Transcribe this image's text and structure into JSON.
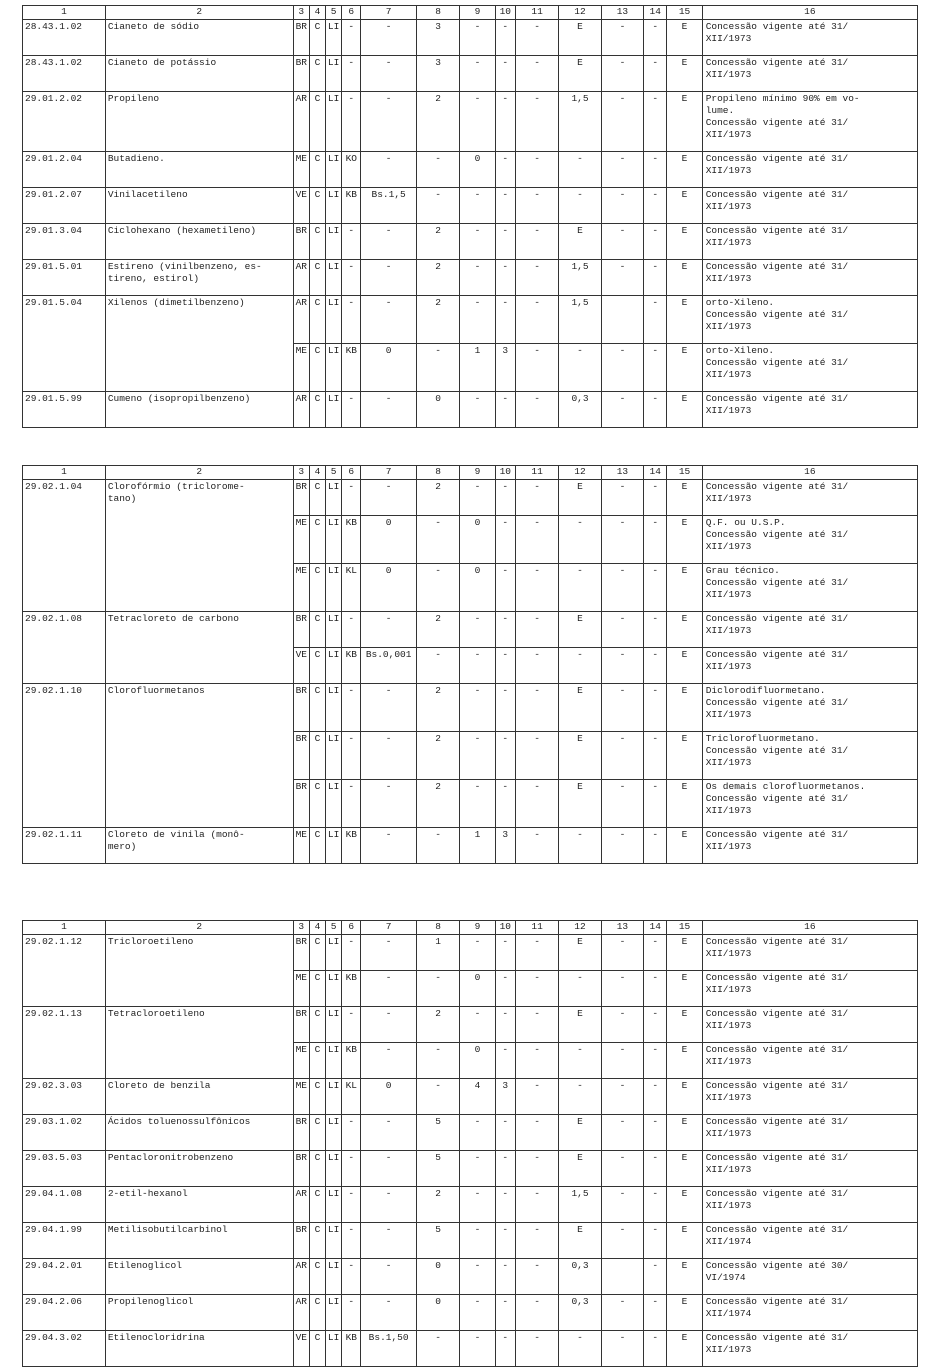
{
  "header": [
    "1",
    "2",
    "3",
    "4",
    "5",
    "6",
    "7",
    "8",
    "9",
    "10",
    "11",
    "12",
    "13",
    "14",
    "15",
    "16"
  ],
  "tables": [
    {
      "entries": [
        {
          "code": "28.43.1.02",
          "name": "Cianeto de sódio",
          "rows": [
            {
              "cells": [
                "BR",
                "C",
                "LI",
                "-",
                "-",
                "3",
                "-",
                "-",
                "-",
                "E",
                "-",
                "-",
                "E"
              ],
              "note": "Concessão vigente até 31/\nXII/1973"
            }
          ]
        },
        {
          "code": "28.43.1.02",
          "name": "Cianeto de potássio",
          "rows": [
            {
              "cells": [
                "BR",
                "C",
                "LI",
                "-",
                "-",
                "3",
                "-",
                "-",
                "-",
                "E",
                "-",
                "-",
                "E"
              ],
              "note": "Concessão vigente até 31/\nXII/1973"
            }
          ]
        },
        {
          "code": "29.01.2.02",
          "name": "Propileno",
          "rows": [
            {
              "cells": [
                "AR",
                "C",
                "LI",
                "-",
                "-",
                "2",
                "-",
                "-",
                "-",
                "1,5",
                "-",
                "-",
                "E"
              ],
              "note": "Propileno mínimo 90% em vo-\nlume.\nConcessão vigente até 31/\nXII/1973"
            }
          ]
        },
        {
          "code": "29.01.2.04",
          "name": "Butadieno.",
          "rows": [
            {
              "cells": [
                "ME",
                "C",
                "LI",
                "KO",
                "-",
                "-",
                "0",
                "-",
                "-",
                "-",
                "-",
                "-",
                "E"
              ],
              "note": "Concessão vigente até 31/\nXII/1973"
            }
          ]
        },
        {
          "code": "29.01.2.07",
          "name": "Vinilacetileno",
          "rows": [
            {
              "cells": [
                "VE",
                "C",
                "LI",
                "KB",
                "Bs.1,5",
                "-",
                "-",
                "-",
                "-",
                "-",
                "-",
                "-",
                "E"
              ],
              "note": "Concessão vigente até 31/\nXII/1973"
            }
          ]
        },
        {
          "code": "29.01.3.04",
          "name": "Ciclohexano (hexametileno)",
          "rows": [
            {
              "cells": [
                "BR",
                "C",
                "LI",
                "-",
                "-",
                "2",
                "-",
                "-",
                "-",
                "E",
                "-",
                "-",
                "E"
              ],
              "note": "Concessão vigente até 31/\nXII/1973"
            }
          ]
        },
        {
          "code": "29.01.5.01",
          "name": "Estireno (vinilbenzeno, es-\ntireno, estirol)",
          "rows": [
            {
              "cells": [
                "AR",
                "C",
                "LI",
                "-",
                "-",
                "2",
                "-",
                "-",
                "-",
                "1,5",
                "-",
                "-",
                "E"
              ],
              "note": "Concessão vigente até 31/\nXII/1973"
            }
          ]
        },
        {
          "code": "29.01.5.04",
          "name": "Xilenos (dimetilbenzeno)",
          "rows": [
            {
              "cells": [
                "AR",
                "C",
                "LI",
                "-",
                "-",
                "2",
                "-",
                "-",
                "-",
                "1,5",
                "",
                "-",
                "E"
              ],
              "note": "orto-Xileno.\nConcessão vigente até 31/\nXII/1973"
            },
            {
              "cells": [
                "ME",
                "C",
                "LI",
                "KB",
                "0",
                "-",
                "1",
                "3",
                "-",
                "-",
                "-",
                "-",
                "E"
              ],
              "note": "orto-Xileno.\nConcessão vigente até 31/\nXII/1973"
            }
          ]
        },
        {
          "code": "29.01.5.99",
          "name": "Cumeno (isopropilbenzeno)",
          "rows": [
            {
              "cells": [
                "AR",
                "C",
                "LI",
                "-",
                "-",
                "0",
                "-",
                "-",
                "-",
                "0,3",
                "-",
                "-",
                "E"
              ],
              "note": "Concessão vigente até 31/\nXII/1973"
            }
          ]
        }
      ]
    },
    {
      "entries": [
        {
          "code": "29.02.1.04",
          "name": "Clorofórmio (triclorome-\ntano)",
          "rows": [
            {
              "cells": [
                "BR",
                "C",
                "LI",
                "-",
                "-",
                "2",
                "-",
                "-",
                "-",
                "E",
                "-",
                "-",
                "E"
              ],
              "note": "Concessão vigente até 31/\nXII/1973"
            },
            {
              "cells": [
                "ME",
                "C",
                "LI",
                "KB",
                "0",
                "-",
                "0",
                "-",
                "-",
                "-",
                "-",
                "-",
                "E"
              ],
              "note": "Q.F. ou U.S.P.\nConcessão vigente até 31/\nXII/1973"
            },
            {
              "cells": [
                "ME",
                "C",
                "LI",
                "KL",
                "0",
                "-",
                "0",
                "-",
                "-",
                "-",
                "-",
                "-",
                "E"
              ],
              "note": "Grau técnico.\nConcessão vigente até 31/\nXII/1973"
            }
          ]
        },
        {
          "code": "29.02.1.08",
          "name": "Tetracloreto de carbono",
          "rows": [
            {
              "cells": [
                "BR",
                "C",
                "LI",
                "-",
                "-",
                "2",
                "-",
                "-",
                "-",
                "E",
                "-",
                "-",
                "E"
              ],
              "note": "Concessão vigente até 31/\nXII/1973"
            },
            {
              "cells": [
                "VE",
                "C",
                "LI",
                "KB",
                "Bs.0,001",
                "-",
                "-",
                "-",
                "-",
                "-",
                "-",
                "-",
                "E"
              ],
              "note": "Concessão vigente até 31/\nXII/1973"
            }
          ]
        },
        {
          "code": "29.02.1.10",
          "name": "Clorofluormetanos",
          "rows": [
            {
              "cells": [
                "BR",
                "C",
                "LI",
                "-",
                "-",
                "2",
                "-",
                "-",
                "-",
                "E",
                "-",
                "-",
                "E"
              ],
              "note": "Diclorodifluormetano.\nConcessão vigente até 31/\nXII/1973"
            },
            {
              "cells": [
                "BR",
                "C",
                "LI",
                "-",
                "-",
                "2",
                "-",
                "-",
                "-",
                "E",
                "-",
                "-",
                "E"
              ],
              "note": "Triclorofluormetano.\nConcessão vigente até 31/\nXII/1973"
            },
            {
              "cells": [
                "BR",
                "C",
                "LI",
                "-",
                "-",
                "2",
                "-",
                "-",
                "-",
                "E",
                "-",
                "-",
                "E"
              ],
              "note": "Os demais clorofluormetanos.\nConcessão vigente até 31/\nXII/1973"
            }
          ]
        },
        {
          "code": "29.02.1.11",
          "name": "Cloreto de vinila (monô-\nmero)",
          "rows": [
            {
              "cells": [
                "ME",
                "C",
                "LI",
                "KB",
                "-",
                "-",
                "1",
                "3",
                "-",
                "-",
                "-",
                "-",
                "E"
              ],
              "note": "Concessão vigente até 31/\nXII/1973"
            }
          ]
        }
      ]
    },
    {
      "entries": [
        {
          "code": "29.02.1.12",
          "name": "Tricloroetileno",
          "rows": [
            {
              "cells": [
                "BR",
                "C",
                "LI",
                "-",
                "-",
                "1",
                "-",
                "-",
                "-",
                "E",
                "-",
                "-",
                "E"
              ],
              "note": "Concessão vigente até 31/\nXII/1973"
            },
            {
              "cells": [
                "ME",
                "C",
                "LI",
                "KB",
                "-",
                "-",
                "0",
                "-",
                "-",
                "-",
                "-",
                "-",
                "E"
              ],
              "note": "Concessão vigente até 31/\nXII/1973"
            }
          ]
        },
        {
          "code": "29.02.1.13",
          "name": "Tetracloroetileno",
          "rows": [
            {
              "cells": [
                "BR",
                "C",
                "LI",
                "-",
                "-",
                "2",
                "-",
                "-",
                "-",
                "E",
                "-",
                "-",
                "E"
              ],
              "note": "Concessão vigente até 31/\nXII/1973"
            },
            {
              "cells": [
                "ME",
                "C",
                "LI",
                "KB",
                "-",
                "-",
                "0",
                "-",
                "-",
                "-",
                "-",
                "-",
                "E"
              ],
              "note": "Concessão vigente até 31/\nXII/1973"
            }
          ]
        },
        {
          "code": "29.02.3.03",
          "name": "Cloreto de benzila",
          "rows": [
            {
              "cells": [
                "ME",
                "C",
                "LI",
                "KL",
                "0",
                "-",
                "4",
                "3",
                "-",
                "-",
                "-",
                "-",
                "E"
              ],
              "note": "Concessão vigente até 31/\nXII/1973"
            }
          ]
        },
        {
          "code": "29.03.1.02",
          "name": "Ácidos toluenossulfônicos",
          "rows": [
            {
              "cells": [
                "BR",
                "C",
                "LI",
                "-",
                "-",
                "5",
                "-",
                "-",
                "-",
                "E",
                "-",
                "-",
                "E"
              ],
              "note": "Concessão vigente até 31/\nXII/1973"
            }
          ]
        },
        {
          "code": "29.03.5.03",
          "name": "Pentacloronitrobenzeno",
          "rows": [
            {
              "cells": [
                "BR",
                "C",
                "LI",
                "-",
                "-",
                "5",
                "-",
                "-",
                "-",
                "E",
                "-",
                "-",
                "E"
              ],
              "note": "Concessão vigente até 31/\nXII/1973"
            }
          ]
        },
        {
          "code": "29.04.1.08",
          "name": "2-etil-hexanol",
          "rows": [
            {
              "cells": [
                "AR",
                "C",
                "LI",
                "-",
                "-",
                "2",
                "-",
                "-",
                "-",
                "1,5",
                "-",
                "-",
                "E"
              ],
              "note": "Concessão vigente até 31/\nXII/1973"
            }
          ]
        },
        {
          "code": "29.04.1.99",
          "name": "Metilisobutilcarbinol",
          "rows": [
            {
              "cells": [
                "BR",
                "C",
                "LI",
                "-",
                "-",
                "5",
                "-",
                "-",
                "-",
                "E",
                "-",
                "-",
                "E"
              ],
              "note": "Concessão vigente até 31/\nXII/1974"
            }
          ]
        },
        {
          "code": "29.04.2.01",
          "name": "Etilenoglicol",
          "rows": [
            {
              "cells": [
                "AR",
                "C",
                "LI",
                "-",
                "-",
                "0",
                "-",
                "-",
                "-",
                "0,3",
                "",
                "-",
                "E"
              ],
              "note": "Concessão vigente até 30/\nVI/1974"
            }
          ]
        },
        {
          "code": "29.04.2.06",
          "name": "Propilenoglicol",
          "rows": [
            {
              "cells": [
                "AR",
                "C",
                "LI",
                "-",
                "-",
                "0",
                "-",
                "-",
                "-",
                "0,3",
                "-",
                "-",
                "E"
              ],
              "note": "Concessão vigente até 31/\nXII/1974"
            }
          ]
        },
        {
          "code": "29.04.3.02",
          "name": "Etilenocloridrina",
          "rows": [
            {
              "cells": [
                "VE",
                "C",
                "LI",
                "KB",
                "Bs.1,50",
                "-",
                "-",
                "-",
                "-",
                "-",
                "-",
                "-",
                "E"
              ],
              "note": "Concessão vigente até 31/\nXII/1973"
            }
          ]
        }
      ]
    }
  ]
}
